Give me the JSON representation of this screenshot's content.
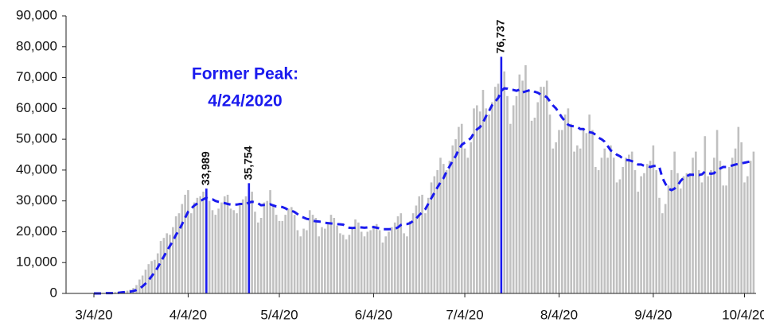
{
  "chart_data": {
    "type": "bar",
    "annotation": [
      "Former Peak:",
      "4/24/2020"
    ],
    "color": "#c0c0c0",
    "highlight_color": "#1a1aee",
    "categories": [
      "3/4/20",
      null,
      null,
      null,
      null,
      null,
      null,
      null,
      null,
      null,
      null,
      null,
      null,
      null,
      null,
      null,
      null,
      null,
      null,
      null,
      null,
      null,
      null,
      null,
      null,
      null,
      null,
      null,
      null,
      null,
      null,
      "4/4/20",
      null,
      null,
      null,
      null,
      null,
      null,
      null,
      null,
      null,
      null,
      null,
      null,
      null,
      null,
      null,
      null,
      null,
      null,
      null,
      null,
      null,
      null,
      null,
      null,
      null,
      null,
      null,
      null,
      null,
      "5/4/20",
      null,
      null,
      null,
      null,
      null,
      null,
      null,
      null,
      null,
      null,
      null,
      null,
      null,
      null,
      null,
      null,
      null,
      null,
      null,
      null,
      null,
      null,
      null,
      null,
      null,
      null,
      null,
      null,
      null,
      null,
      "6/4/20",
      null,
      null,
      null,
      null,
      null,
      null,
      null,
      null,
      null,
      null,
      null,
      null,
      null,
      null,
      null,
      null,
      null,
      null,
      null,
      null,
      null,
      null,
      null,
      null,
      null,
      null,
      null,
      null,
      null,
      "7/4/20",
      null,
      null,
      null,
      null,
      null,
      null,
      null,
      null,
      null,
      null,
      null,
      null,
      null,
      null,
      null,
      null,
      null,
      null,
      null,
      null,
      null,
      null,
      null,
      null,
      null,
      null,
      null,
      null,
      null,
      null,
      "8/4/20",
      null,
      null,
      null,
      null,
      null,
      null,
      null,
      null,
      null,
      null,
      null,
      null,
      null,
      null,
      null,
      null,
      null,
      null,
      null,
      null,
      null,
      null,
      null,
      null,
      null,
      null,
      null,
      null,
      null,
      null,
      "9/4/20",
      null,
      null,
      null,
      null,
      null,
      null,
      null,
      null,
      null,
      null,
      null,
      null,
      null,
      null,
      null,
      null,
      null,
      null,
      null,
      null,
      null,
      null,
      null,
      null,
      null,
      null,
      null,
      null,
      null,
      "10/4/20",
      null,
      null,
      null
    ],
    "values": [
      30,
      50,
      60,
      100,
      120,
      200,
      290,
      400,
      500,
      600,
      700,
      900,
      1200,
      1800,
      2700,
      4500,
      5800,
      7700,
      9500,
      10500,
      10900,
      13000,
      17000,
      18000,
      19500,
      19000,
      21500,
      25000,
      26000,
      29000,
      32000,
      33500,
      26000,
      29500,
      31000,
      31500,
      33000,
      33989,
      30000,
      27000,
      25500,
      27500,
      29500,
      31500,
      32000,
      27500,
      27000,
      26000,
      29000,
      30500,
      31500,
      35754,
      33000,
      26500,
      23000,
      24500,
      29500,
      30000,
      33500,
      29000,
      25500,
      23500,
      23500,
      25500,
      27500,
      28000,
      25500,
      20500,
      18500,
      21000,
      20500,
      27000,
      25500,
      24500,
      18500,
      21500,
      21000,
      22500,
      25500,
      24500,
      22000,
      19500,
      19000,
      17500,
      19000,
      21500,
      24000,
      23000,
      20000,
      18500,
      20000,
      20500,
      22000,
      22500,
      20500,
      16500,
      18500,
      20000,
      21500,
      23000,
      25000,
      26000,
      19500,
      18500,
      23500,
      26000,
      28500,
      31500,
      32000,
      26000,
      31000,
      36000,
      38000,
      40000,
      44000,
      42000,
      40000,
      43000,
      48000,
      50000,
      54000,
      55000,
      47000,
      44000,
      49000,
      60000,
      61000,
      59000,
      66000,
      60000,
      58000,
      62000,
      67000,
      68000,
      76737,
      72000,
      64000,
      55000,
      61000,
      64000,
      71000,
      69000,
      74000,
      66000,
      56000,
      57000,
      62000,
      67000,
      67000,
      69000,
      58000,
      47000,
      49000,
      53000,
      53000,
      58000,
      60000,
      55000,
      46000,
      48000,
      47000,
      53000,
      52000,
      58000,
      53000,
      41000,
      40000,
      44000,
      47000,
      44000,
      48000,
      44000,
      36000,
      37000,
      41000,
      44000,
      45000,
      46000,
      40000,
      33000,
      38000,
      39000,
      42000,
      43000,
      48000,
      40000,
      31000,
      26000,
      29000,
      35000,
      40000,
      46000,
      39000,
      34000,
      38000,
      39000,
      39000,
      44000,
      46000,
      40000,
      36000,
      51000,
      38000,
      40000,
      44000,
      53000,
      43000,
      35000,
      35000,
      41000,
      44000,
      47000,
      54000,
      49000,
      36000,
      38000,
      43000,
      46000
    ],
    "value_labels": [
      null,
      null,
      null,
      null,
      null,
      null,
      null,
      null,
      null,
      null,
      null,
      null,
      null,
      null,
      null,
      null,
      null,
      null,
      null,
      null,
      null,
      null,
      null,
      null,
      null,
      null,
      null,
      null,
      null,
      null,
      null,
      null,
      null,
      null,
      null,
      null,
      null,
      "33,989",
      null,
      null,
      null,
      null,
      null,
      null,
      null,
      null,
      null,
      null,
      null,
      null,
      null,
      "35,754",
      null,
      null,
      null,
      null,
      null,
      null,
      null,
      null,
      null,
      null,
      null,
      null,
      null,
      null,
      null,
      null,
      null,
      null,
      null,
      null,
      null,
      null,
      null,
      null,
      null,
      null,
      null,
      null,
      null,
      null,
      null,
      null,
      null,
      null,
      null,
      null,
      null,
      null,
      null,
      null,
      null,
      null,
      null,
      null,
      null,
      null,
      null,
      null,
      null,
      null,
      null,
      null,
      null,
      null,
      null,
      null,
      null,
      null,
      null,
      null,
      null,
      null,
      null,
      null,
      null,
      null,
      null,
      null,
      null,
      null,
      null,
      null,
      null,
      null,
      null,
      null,
      null,
      null,
      null,
      null,
      null,
      null,
      "76,737",
      null,
      null,
      null,
      null,
      null,
      null,
      null,
      null,
      null,
      null,
      null,
      null,
      null,
      null,
      null,
      null,
      null,
      null,
      null,
      null,
      null,
      null,
      null,
      null,
      null,
      null,
      null,
      null,
      null,
      null,
      null,
      null,
      null,
      null,
      null,
      null,
      null,
      null,
      null,
      null,
      null,
      null,
      null,
      null,
      null,
      null,
      null,
      null,
      null,
      null,
      null,
      null,
      null,
      null,
      null,
      null,
      null,
      null,
      null,
      null,
      null,
      null,
      null,
      null,
      null,
      null,
      null,
      null,
      null,
      null,
      null,
      null,
      null,
      null,
      null,
      null,
      null,
      null,
      null,
      null,
      null,
      null,
      null
    ],
    "line": {
      "type": "line",
      "color": "#1a1aee",
      "dashed": true,
      "values": [
        0,
        0,
        0,
        0,
        100,
        100,
        100,
        200,
        200,
        300,
        400,
        500,
        600,
        800,
        1100,
        1600,
        2300,
        3200,
        4300,
        5600,
        6900,
        8400,
        10200,
        12000,
        13800,
        15400,
        17000,
        19000,
        20500,
        22500,
        24500,
        26500,
        27500,
        28500,
        29200,
        30000,
        30500,
        31000,
        30700,
        30500,
        30000,
        29700,
        29500,
        29300,
        29000,
        28800,
        28800,
        28800,
        29000,
        29000,
        28900,
        29500,
        29700,
        29600,
        29200,
        28600,
        28700,
        28700,
        28900,
        28500,
        28200,
        28200,
        28000,
        27600,
        27000,
        26800,
        26400,
        25700,
        25000,
        24600,
        24200,
        24000,
        23600,
        23400,
        23300,
        23200,
        22900,
        22800,
        22700,
        22600,
        22500,
        22400,
        22300,
        21700,
        21300,
        21200,
        21300,
        21400,
        21400,
        21300,
        21400,
        21500,
        21500,
        21300,
        21100,
        20800,
        20800,
        20800,
        20900,
        21000,
        21400,
        22200,
        22500,
        22500,
        22800,
        23500,
        24300,
        25400,
        26300,
        27300,
        29100,
        30900,
        32600,
        34400,
        36000,
        37400,
        39500,
        41200,
        43000,
        44600,
        46600,
        48200,
        48900,
        49500,
        50400,
        52000,
        53200,
        53900,
        55500,
        57500,
        59200,
        61100,
        62200,
        63400,
        65700,
        66500,
        66400,
        66000,
        66000,
        65700,
        66100,
        65200,
        65500,
        65800,
        66000,
        65400,
        65100,
        64500,
        64200,
        63600,
        62300,
        61000,
        60000,
        58500,
        57000,
        55800,
        54700,
        54300,
        54200,
        54000,
        53300,
        53300,
        52600,
        52300,
        52100,
        51500,
        50500,
        50000,
        49200,
        47800,
        46400,
        45800,
        45000,
        44500,
        43700,
        43300,
        43200,
        42900,
        42300,
        41800,
        41800,
        41400,
        41200,
        41000,
        41300,
        41400,
        41000,
        37500,
        35500,
        34000,
        33500,
        34000,
        35000,
        36500,
        37500,
        38000,
        38500,
        38500,
        38500,
        38400,
        38600,
        39500,
        39000,
        38800,
        39000,
        40000,
        40500,
        41000,
        41000,
        41200,
        41500,
        41800,
        42000,
        42200,
        42400,
        42600,
        42800,
        43000
      ]
    },
    "ylim": [
      0,
      90000
    ],
    "yticks": [
      0,
      {
        "value": 10000,
        "label": "10,000"
      },
      {
        "value": 20000,
        "label": "20,000"
      },
      {
        "value": 30000,
        "label": "30,000"
      },
      {
        "value": 40000,
        "label": "40,000"
      },
      {
        "value": 50000,
        "label": "50,000"
      },
      {
        "value": 60000,
        "label": "60,000"
      },
      {
        "value": 70000,
        "label": "70,000"
      },
      {
        "value": 80000,
        "label": "80,000"
      },
      {
        "value": 90000,
        "label": "90,000"
      }
    ],
    "grid": false
  }
}
